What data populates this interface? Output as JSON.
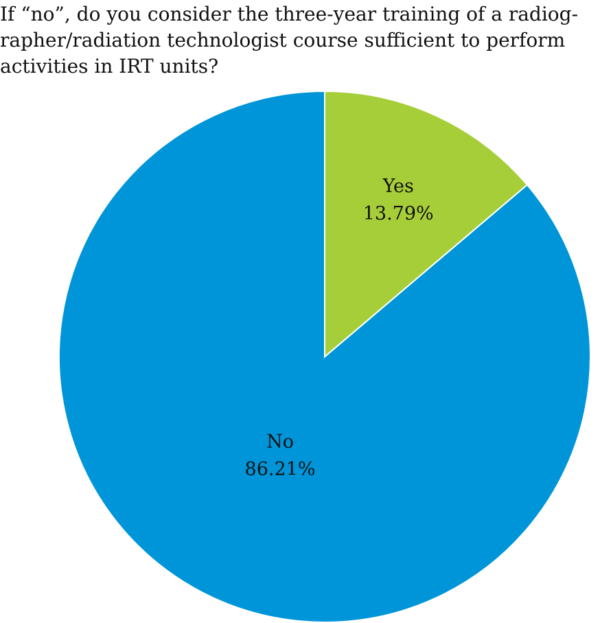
{
  "chart_data": {
    "type": "pie",
    "title_lines": [
      "If “no”, do you consider the three-year training of a radiog-",
      "rapher/radiation technologist course sufficient to perform",
      "activities in IRT units?"
    ],
    "slices": [
      {
        "label": "Yes",
        "value": 13.79,
        "value_label": "13.79%",
        "color": "#a6ce39"
      },
      {
        "label": "No",
        "value": 86.21,
        "value_label": "86.21%",
        "color": "#0095d9"
      }
    ],
    "start_angle": "12 o'clock",
    "direction": "clockwise"
  }
}
